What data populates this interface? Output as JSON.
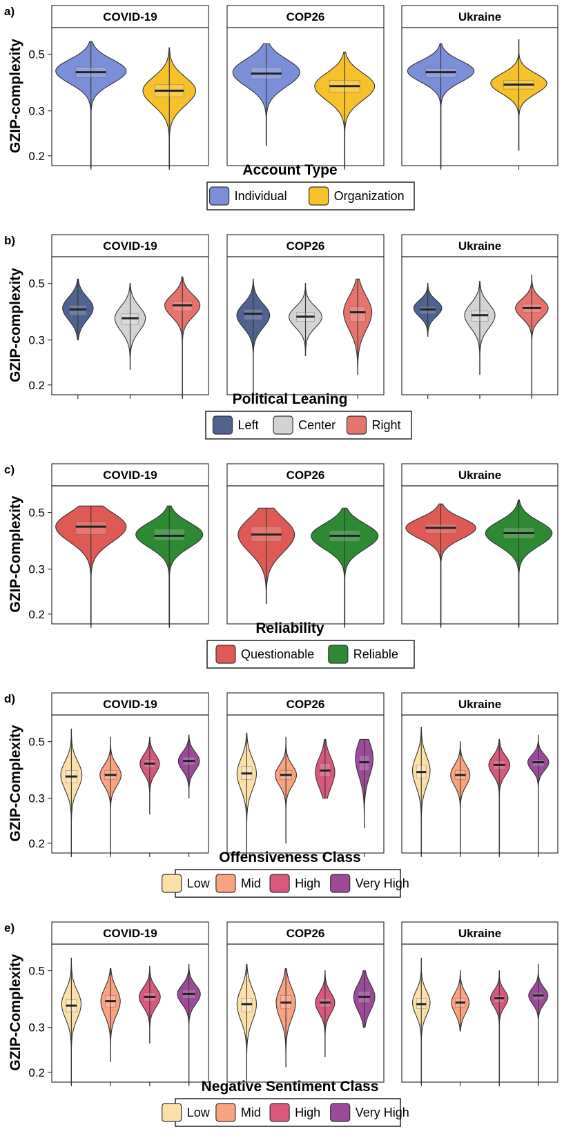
{
  "figure": {
    "facets": [
      "COVID-19",
      "COP26",
      "Ukraine"
    ],
    "ylim": [
      0.19,
      0.62
    ],
    "yticks": [
      0.2,
      0.3,
      0.5
    ]
  },
  "chart_data": [
    {
      "type": "violin",
      "panel_label": "a)",
      "ylabel": "GZIP-complexity",
      "xlabel": "Account Type",
      "categories": [
        "Individual",
        "Organization"
      ],
      "colors": [
        "#7b8fd9",
        "#f6c12a"
      ],
      "series": [
        {
          "facet": "COVID-19",
          "groups": [
            {
              "category": "Individual",
              "min": 0.18,
              "q1": 0.405,
              "median": 0.425,
              "q3": 0.445,
              "max": 0.56,
              "mode": 0.43,
              "width": 1.0
            },
            {
              "category": "Organization",
              "min": 0.18,
              "q1": 0.34,
              "median": 0.36,
              "q3": 0.38,
              "max": 0.53,
              "mode": 0.36,
              "width": 0.75
            }
          ]
        },
        {
          "facet": "COP26",
          "groups": [
            {
              "category": "Individual",
              "min": 0.22,
              "q1": 0.4,
              "median": 0.42,
              "q3": 0.445,
              "max": 0.55,
              "mode": 0.425,
              "width": 0.95
            },
            {
              "category": "Organization",
              "min": 0.18,
              "q1": 0.355,
              "median": 0.375,
              "q3": 0.395,
              "max": 0.51,
              "mode": 0.375,
              "width": 0.85
            }
          ]
        },
        {
          "facet": "Ukraine",
          "groups": [
            {
              "category": "Individual",
              "min": 0.18,
              "q1": 0.405,
              "median": 0.425,
              "q3": 0.44,
              "max": 0.55,
              "mode": 0.43,
              "width": 0.95
            },
            {
              "category": "Organization",
              "min": 0.21,
              "q1": 0.365,
              "median": 0.38,
              "q3": 0.395,
              "max": 0.57,
              "mode": 0.385,
              "width": 0.8
            }
          ]
        }
      ]
    },
    {
      "type": "violin",
      "panel_label": "b)",
      "ylabel": "GZIP-complexity",
      "xlabel": "Political Leaning",
      "categories": [
        "Left",
        "Center",
        "Right"
      ],
      "colors": [
        "#4e6390",
        "#d3d3d3",
        "#e8736c"
      ],
      "series": [
        {
          "facet": "COVID-19",
          "groups": [
            {
              "category": "Left",
              "min": 0.3,
              "q1": 0.375,
              "median": 0.395,
              "q3": 0.41,
              "max": 0.52,
              "mode": 0.4,
              "width": 0.65
            },
            {
              "category": "Center",
              "min": 0.23,
              "q1": 0.345,
              "median": 0.365,
              "q3": 0.38,
              "max": 0.5,
              "mode": 0.365,
              "width": 0.65
            },
            {
              "category": "Right",
              "min": 0.18,
              "q1": 0.39,
              "median": 0.41,
              "q3": 0.425,
              "max": 0.53,
              "mode": 0.41,
              "width": 0.75
            }
          ]
        },
        {
          "facet": "COP26",
          "groups": [
            {
              "category": "Left",
              "min": 0.18,
              "q1": 0.36,
              "median": 0.38,
              "q3": 0.395,
              "max": 0.52,
              "mode": 0.375,
              "width": 0.7
            },
            {
              "category": "Center",
              "min": 0.26,
              "q1": 0.355,
              "median": 0.37,
              "q3": 0.385,
              "max": 0.5,
              "mode": 0.37,
              "width": 0.7
            },
            {
              "category": "Right",
              "min": 0.22,
              "q1": 0.355,
              "median": 0.385,
              "q3": 0.405,
              "max": 0.52,
              "mode": 0.385,
              "width": 0.6
            }
          ]
        },
        {
          "facet": "Ukraine",
          "groups": [
            {
              "category": "Left",
              "min": 0.31,
              "q1": 0.38,
              "median": 0.395,
              "q3": 0.405,
              "max": 0.5,
              "mode": 0.4,
              "width": 0.6
            },
            {
              "category": "Center",
              "min": 0.22,
              "q1": 0.355,
              "median": 0.375,
              "q3": 0.39,
              "max": 0.51,
              "mode": 0.375,
              "width": 0.65
            },
            {
              "category": "Right",
              "min": 0.18,
              "q1": 0.385,
              "median": 0.4,
              "q3": 0.415,
              "max": 0.54,
              "mode": 0.4,
              "width": 0.7
            }
          ]
        }
      ]
    },
    {
      "type": "violin",
      "panel_label": "c)",
      "ylabel": "GZIP-Complexity",
      "xlabel": "Reliability",
      "categories": [
        "Questionable",
        "Reliable"
      ],
      "colors": [
        "#e05a55",
        "#2e8a32"
      ],
      "series": [
        {
          "facet": "COVID-19",
          "groups": [
            {
              "category": "Questionable",
              "min": 0.18,
              "q1": 0.41,
              "median": 0.44,
              "q3": 0.46,
              "max": 0.53,
              "mode": 0.44,
              "width": 1.0
            },
            {
              "category": "Reliable",
              "min": 0.18,
              "q1": 0.39,
              "median": 0.405,
              "q3": 0.43,
              "max": 0.53,
              "mode": 0.41,
              "width": 0.95
            }
          ]
        },
        {
          "facet": "COP26",
          "groups": [
            {
              "category": "Questionable",
              "min": 0.22,
              "q1": 0.385,
              "median": 0.41,
              "q3": 0.44,
              "max": 0.52,
              "mode": 0.41,
              "width": 0.8
            },
            {
              "category": "Reliable",
              "min": 0.18,
              "q1": 0.385,
              "median": 0.405,
              "q3": 0.425,
              "max": 0.52,
              "mode": 0.405,
              "width": 0.95
            }
          ]
        },
        {
          "facet": "Ukraine",
          "groups": [
            {
              "category": "Questionable",
              "min": 0.18,
              "q1": 0.415,
              "median": 0.435,
              "q3": 0.45,
              "max": 0.54,
              "mode": 0.435,
              "width": 1.0
            },
            {
              "category": "Reliable",
              "min": 0.18,
              "q1": 0.395,
              "median": 0.415,
              "q3": 0.435,
              "max": 0.56,
              "mode": 0.415,
              "width": 0.95
            }
          ]
        }
      ]
    },
    {
      "type": "violin",
      "panel_label": "d)",
      "ylabel": "GZIP-Complexity",
      "xlabel": "Offensiveness Class",
      "categories": [
        "Low",
        "Mid",
        "High",
        "Very High"
      ],
      "colors": [
        "#fde0a8",
        "#fba27e",
        "#d9587c",
        "#9d4a9b"
      ],
      "series": [
        {
          "facet": "COVID-19",
          "groups": [
            {
              "category": "Low",
              "min": 0.18,
              "q1": 0.345,
              "median": 0.365,
              "q3": 0.385,
              "max": 0.56,
              "mode": 0.37,
              "width": 0.6
            },
            {
              "category": "Mid",
              "min": 0.18,
              "q1": 0.355,
              "median": 0.37,
              "q3": 0.385,
              "max": 0.52,
              "mode": 0.37,
              "width": 0.6
            },
            {
              "category": "High",
              "min": 0.26,
              "q1": 0.395,
              "median": 0.41,
              "q3": 0.425,
              "max": 0.52,
              "mode": 0.41,
              "width": 0.55
            },
            {
              "category": "Very High",
              "min": 0.3,
              "q1": 0.405,
              "median": 0.42,
              "q3": 0.435,
              "max": 0.53,
              "mode": 0.42,
              "width": 0.6
            }
          ]
        },
        {
          "facet": "COP26",
          "groups": [
            {
              "category": "Low",
              "min": 0.18,
              "q1": 0.355,
              "median": 0.375,
              "q3": 0.4,
              "max": 0.54,
              "mode": 0.375,
              "width": 0.55
            },
            {
              "category": "Mid",
              "min": 0.2,
              "q1": 0.355,
              "median": 0.37,
              "q3": 0.385,
              "max": 0.52,
              "mode": 0.37,
              "width": 0.6
            },
            {
              "category": "High",
              "min": 0.3,
              "q1": 0.365,
              "median": 0.385,
              "q3": 0.41,
              "max": 0.51,
              "mode": 0.38,
              "width": 0.55
            },
            {
              "category": "Very High",
              "min": 0.23,
              "q1": 0.385,
              "median": 0.415,
              "q3": 0.44,
              "max": 0.51,
              "mode": 0.43,
              "width": 0.5
            }
          ]
        },
        {
          "facet": "Ukraine",
          "groups": [
            {
              "category": "Low",
              "min": 0.18,
              "q1": 0.36,
              "median": 0.38,
              "q3": 0.405,
              "max": 0.57,
              "mode": 0.385,
              "width": 0.5
            },
            {
              "category": "Mid",
              "min": 0.18,
              "q1": 0.355,
              "median": 0.37,
              "q3": 0.385,
              "max": 0.5,
              "mode": 0.37,
              "width": 0.55
            },
            {
              "category": "High",
              "min": 0.18,
              "q1": 0.39,
              "median": 0.405,
              "q3": 0.42,
              "max": 0.51,
              "mode": 0.405,
              "width": 0.6
            },
            {
              "category": "Very High",
              "min": 0.18,
              "q1": 0.4,
              "median": 0.415,
              "q3": 0.425,
              "max": 0.53,
              "mode": 0.415,
              "width": 0.6
            }
          ]
        }
      ]
    },
    {
      "type": "violin",
      "panel_label": "e)",
      "ylabel": "GZIP-Complexity",
      "xlabel": "Negative Sentiment Class",
      "categories": [
        "Low",
        "Mid",
        "High",
        "Very High"
      ],
      "colors": [
        "#fde0a8",
        "#fba27e",
        "#d9587c",
        "#9d4a9b"
      ],
      "series": [
        {
          "facet": "COVID-19",
          "groups": [
            {
              "category": "Low",
              "min": 0.18,
              "q1": 0.345,
              "median": 0.365,
              "q3": 0.385,
              "max": 0.56,
              "mode": 0.37,
              "width": 0.55
            },
            {
              "category": "Mid",
              "min": 0.22,
              "q1": 0.36,
              "median": 0.38,
              "q3": 0.4,
              "max": 0.51,
              "mode": 0.38,
              "width": 0.55
            },
            {
              "category": "High",
              "min": 0.26,
              "q1": 0.38,
              "median": 0.395,
              "q3": 0.41,
              "max": 0.52,
              "mode": 0.395,
              "width": 0.6
            },
            {
              "category": "Very High",
              "min": 0.18,
              "q1": 0.39,
              "median": 0.405,
              "q3": 0.42,
              "max": 0.53,
              "mode": 0.405,
              "width": 0.65
            }
          ]
        },
        {
          "facet": "COP26",
          "groups": [
            {
              "category": "Low",
              "min": 0.18,
              "q1": 0.345,
              "median": 0.37,
              "q3": 0.39,
              "max": 0.53,
              "mode": 0.37,
              "width": 0.55
            },
            {
              "category": "Mid",
              "min": 0.21,
              "q1": 0.355,
              "median": 0.375,
              "q3": 0.4,
              "max": 0.51,
              "mode": 0.375,
              "width": 0.55
            },
            {
              "category": "High",
              "min": 0.23,
              "q1": 0.36,
              "median": 0.375,
              "q3": 0.39,
              "max": 0.5,
              "mode": 0.375,
              "width": 0.55
            },
            {
              "category": "Very High",
              "min": 0.3,
              "q1": 0.375,
              "median": 0.395,
              "q3": 0.415,
              "max": 0.5,
              "mode": 0.395,
              "width": 0.6
            }
          ]
        },
        {
          "facet": "Ukraine",
          "groups": [
            {
              "category": "Low",
              "min": 0.18,
              "q1": 0.355,
              "median": 0.37,
              "q3": 0.39,
              "max": 0.56,
              "mode": 0.375,
              "width": 0.5
            },
            {
              "category": "Mid",
              "min": 0.29,
              "q1": 0.36,
              "median": 0.375,
              "q3": 0.39,
              "max": 0.5,
              "mode": 0.375,
              "width": 0.5
            },
            {
              "category": "High",
              "min": 0.18,
              "q1": 0.375,
              "median": 0.39,
              "q3": 0.4,
              "max": 0.5,
              "mode": 0.39,
              "width": 0.5
            },
            {
              "category": "Very High",
              "min": 0.18,
              "q1": 0.385,
              "median": 0.4,
              "q3": 0.41,
              "max": 0.53,
              "mode": 0.4,
              "width": 0.55
            }
          ]
        }
      ]
    }
  ]
}
